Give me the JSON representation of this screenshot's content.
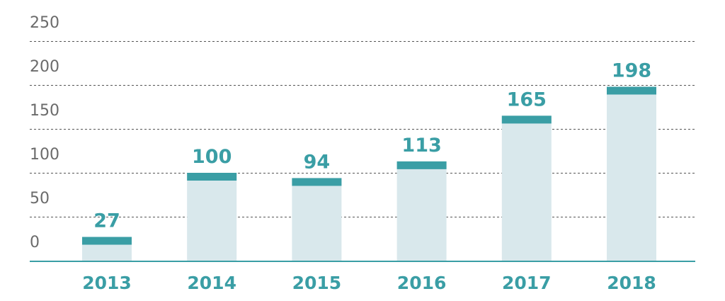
{
  "chart_data": {
    "type": "bar",
    "categories": [
      "2013",
      "2014",
      "2015",
      "2016",
      "2017",
      "2018"
    ],
    "values": [
      27,
      100,
      94,
      113,
      165,
      198
    ],
    "data_labels": [
      "27",
      "100",
      "94",
      "113",
      "165",
      "198"
    ],
    "y_ticks": [
      "0",
      "50",
      "100",
      "150",
      "200",
      "250"
    ],
    "y_tick_values": [
      0,
      50,
      100,
      150,
      200,
      250
    ],
    "title": "",
    "xlabel": "",
    "ylabel": "",
    "ylim": [
      0,
      250
    ],
    "grid": true,
    "legend": "none",
    "colors": {
      "bar_fill": "#d9e8ec",
      "bar_cap": "#3a9ea5",
      "axis": "#3a9ea5",
      "text": "#3a9ea5",
      "tick_text": "#6b6b6b"
    }
  }
}
